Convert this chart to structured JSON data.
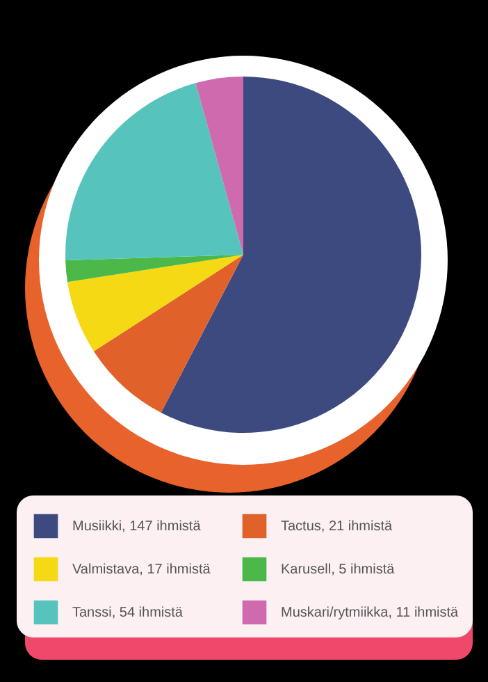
{
  "chart_data": {
    "type": "pie",
    "categories": [
      "Musiikki, 147 ihmistä",
      "Tactus, 21 ihmistä",
      "Valmistava, 17 ihmistä",
      "Karusell, 5 ihmistä",
      "Tanssi, 54 ihmistä",
      "Muskari/rytmiikka, 11 ihmistä"
    ],
    "values": [
      147,
      21,
      17,
      5,
      54,
      11
    ],
    "colors": [
      "#3d4a7f",
      "#e0622a",
      "#f5d914",
      "#4cb84a",
      "#56c4bd",
      "#d06aae"
    ],
    "legend": "bottom"
  }
}
